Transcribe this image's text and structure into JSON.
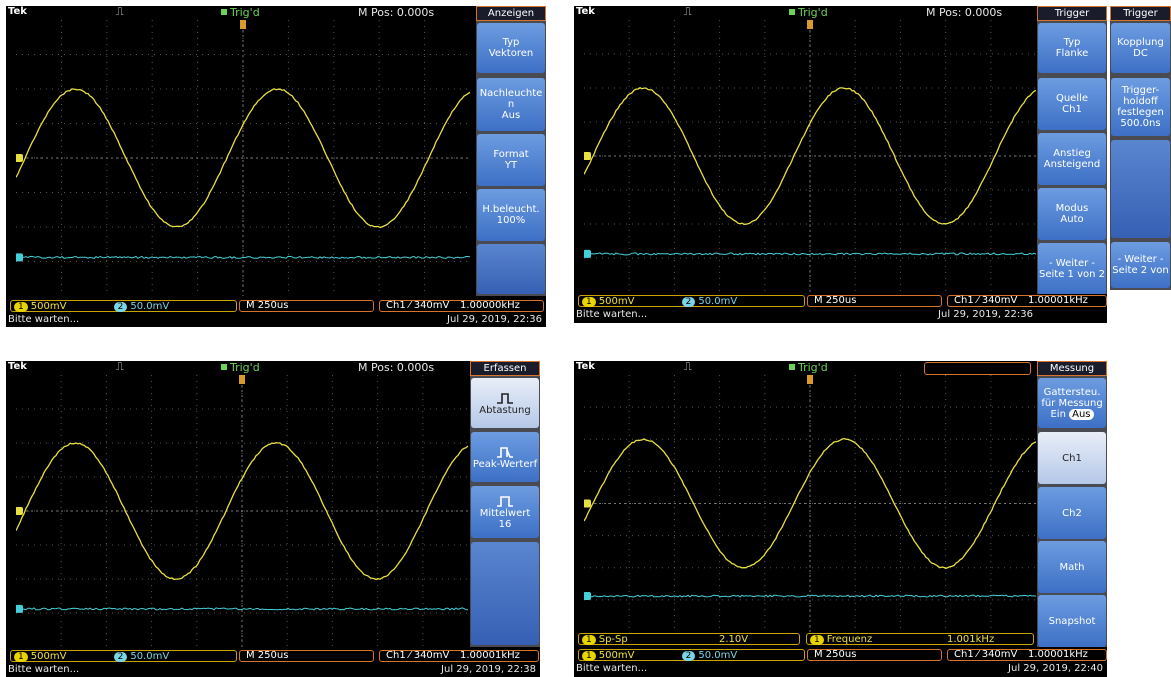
{
  "colors": {
    "ch1": "#e8e040",
    "ch2": "#44d0d8",
    "accent": "#d7742c",
    "menu_btn": "#4d82d6"
  },
  "panels": [
    {
      "top": {
        "brand": "Tek",
        "trig": "Trig'd",
        "mpos": "M Pos: 0.000s"
      },
      "menu_title": "Anzeigen",
      "menu_buttons": [
        {
          "l1": "Typ",
          "l2": "Vektoren"
        },
        {
          "l1": "Nachleuchte",
          "l2": "n",
          "l3": "Aus"
        },
        {
          "l1": "Format",
          "l2": "YT"
        },
        {
          "l1": "H.beleucht.",
          "l2": "100%"
        }
      ],
      "status": {
        "ch1_label": "1",
        "ch1_scale": "500mV",
        "ch2_label": "2",
        "ch2_scale": "50.0mV",
        "timebase": "M 250us",
        "trigger": "Ch1 ⁄ 340mV",
        "freq": "1.00000kHz"
      },
      "bottom": {
        "message": "Bitte warten...",
        "timestamp": "Jul 29, 2019, 22:36"
      }
    },
    {
      "top": {
        "brand": "Tek",
        "trig": "Trig'd",
        "mpos": "M Pos: 0.000s"
      },
      "menu_title": "Trigger",
      "menu_buttons": [
        {
          "l1": "Typ",
          "l2": "Flanke"
        },
        {
          "l1": "Quelle",
          "l2": "Ch1"
        },
        {
          "l1": "Anstieg",
          "l2": "Ansteigend"
        },
        {
          "l1": "Modus",
          "l2": "Auto"
        },
        {
          "l1": "- Weiter -",
          "l2": "Seite 1 von 2"
        }
      ],
      "menu2_title": "Trigger",
      "menu2_buttons": [
        {
          "l1": "Kopplung",
          "l2": "DC"
        },
        {
          "l1": "Trigger-",
          "l2": "holdoff",
          "l3": "festlegen",
          "l4": "500.0ns"
        },
        {
          "l1": "- Weiter -",
          "l2": "Seite 2 von"
        }
      ],
      "status": {
        "ch1_label": "1",
        "ch1_scale": "500mV",
        "ch2_label": "2",
        "ch2_scale": "50.0mV",
        "timebase": "M 250us",
        "trigger": "Ch1 ⁄ 340mV",
        "freq": "1.00001kHz"
      },
      "bottom": {
        "message": "Bitte warten...",
        "timestamp": "Jul 29, 2019, 22:36"
      }
    },
    {
      "top": {
        "brand": "Tek",
        "trig": "Trig'd",
        "mpos": "M Pos: 0.000s"
      },
      "menu_title": "Erfassen",
      "menu_buttons": [
        {
          "l1": "Abtastung"
        },
        {
          "l1": "Peak-Werterf"
        },
        {
          "l1": "Mittelwert",
          "l2": "16"
        }
      ],
      "status": {
        "ch1_label": "1",
        "ch1_scale": "500mV",
        "ch2_label": "2",
        "ch2_scale": "50.0mV",
        "timebase": "M 250us",
        "trigger": "Ch1 ⁄ 340mV",
        "freq": "1.00001kHz"
      },
      "bottom": {
        "message": "Bitte warten...",
        "timestamp": "Jul 29, 2019, 22:38"
      }
    },
    {
      "top": {
        "brand": "Tek",
        "trig": "Trig'd",
        "mpos": ""
      },
      "menu_title": "Messung",
      "menu_buttons": [
        {
          "l1": "Gattersteu.",
          "l2": "für Messung",
          "l3": "Ein",
          "l3b": "Aus"
        },
        {
          "l1": "Ch1"
        },
        {
          "l1": "Ch2"
        },
        {
          "l1": "Math"
        },
        {
          "l1": "Snapshot"
        }
      ],
      "measure": {
        "badge1": "1",
        "label1": "Sp-Sp",
        "value1": "2.10V",
        "badge2": "1",
        "label2": "Frequenz",
        "value2": "1.001kHz"
      },
      "status": {
        "ch1_label": "1",
        "ch1_scale": "500mV",
        "ch2_label": "2",
        "ch2_scale": "50.0mV",
        "timebase": "M 250us",
        "trigger": "Ch1 ⁄ 340mV",
        "freq": "1.00001kHz"
      },
      "bottom": {
        "message": "Bitte warten...",
        "timestamp": "Jul 29, 2019, 22:40"
      }
    }
  ]
}
